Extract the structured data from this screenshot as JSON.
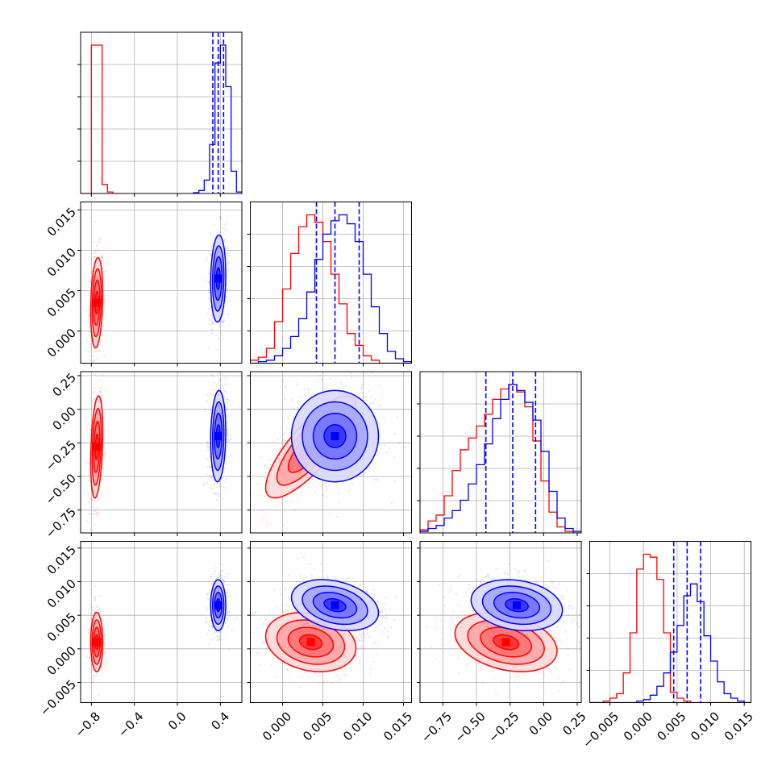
{
  "chart_data": {
    "type": "corner",
    "title": "",
    "colors": {
      "series_a": "#ff0000",
      "series_b": "#0000ff",
      "grid": "#b0b0b0",
      "axis": "#000000"
    },
    "grid": true,
    "params": [
      {
        "range": [
          -0.9,
          0.6
        ],
        "ticks": [
          -0.8,
          -0.4,
          0.0,
          0.4
        ],
        "tick_labels": [
          "−0.8",
          "−0.4",
          "0.0",
          "0.4"
        ]
      },
      {
        "range": [
          -0.004,
          0.016
        ],
        "ticks": [
          0.0,
          0.005,
          0.01,
          0.015
        ],
        "tick_labels": [
          "0.000",
          "0.005",
          "0.010",
          "0.015"
        ]
      },
      {
        "range": [
          -0.92,
          0.28
        ],
        "ticks": [
          -0.75,
          -0.5,
          -0.25,
          0.0,
          0.25
        ],
        "tick_labels": [
          "−0.75",
          "−0.50",
          "−0.25",
          "0.00",
          "0.25"
        ]
      },
      {
        "range": [
          -0.008,
          0.016
        ],
        "ticks": [
          -0.005,
          0.0,
          0.005,
          0.01,
          0.015
        ],
        "tick_labels": [
          "−0.005",
          "0.000",
          "0.005",
          "0.010",
          "0.015"
        ]
      }
    ],
    "series": [
      {
        "name": "",
        "color": "#ff0000",
        "mean": [
          -0.75,
          0.0035,
          -0.28,
          0.001
        ],
        "std": [
          0.028,
          0.0028,
          0.19,
          0.0022
        ],
        "histograms": [
          {
            "edges": [
              -0.9,
              -0.85,
              -0.8,
              -0.75,
              -0.7,
              -0.65,
              -0.6,
              -0.55
            ],
            "counts": [
              0,
              0,
              1.0,
              1.0,
              0.06,
              0.01,
              0,
              0
            ]
          },
          {
            "edges": [
              -0.004,
              -0.003,
              -0.002,
              -0.001,
              0.0,
              0.001,
              0.002,
              0.003,
              0.004,
              0.005,
              0.006,
              0.007,
              0.008,
              0.009,
              0.01,
              0.011,
              0.012,
              0.013,
              0.014,
              0.015,
              0.016
            ],
            "counts": [
              0.02,
              0.04,
              0.1,
              0.28,
              0.5,
              0.74,
              0.92,
              1.0,
              0.95,
              0.82,
              0.6,
              0.4,
              0.2,
              0.12,
              0.05,
              0.02,
              0,
              0,
              0,
              0
            ]
          },
          {
            "edges": [
              -0.92,
              -0.86,
              -0.8,
              -0.74,
              -0.68,
              -0.62,
              -0.56,
              -0.5,
              -0.44,
              -0.38,
              -0.32,
              -0.26,
              -0.2,
              -0.14,
              -0.08,
              -0.02,
              0.04,
              0.1,
              0.16,
              0.22,
              0.28
            ],
            "counts": [
              0.02,
              0.08,
              0.12,
              0.25,
              0.42,
              0.56,
              0.64,
              0.72,
              0.8,
              0.9,
              0.97,
              1.0,
              0.95,
              0.85,
              0.62,
              0.35,
              0.14,
              0.04,
              0.01,
              0
            ]
          },
          {
            "edges": [
              -0.008,
              -0.007,
              -0.006,
              -0.005,
              -0.004,
              -0.003,
              -0.002,
              -0.001,
              0.0,
              0.001,
              0.002,
              0.003,
              0.004,
              0.005,
              0.006,
              0.007,
              0.008,
              0.009,
              0.01,
              0.011,
              0.012,
              0.013,
              0.014,
              0.015,
              0.016
            ],
            "counts": [
              0,
              0,
              0.01,
              0.03,
              0.06,
              0.2,
              0.47,
              0.9,
              1.0,
              0.98,
              0.83,
              0.47,
              0.07,
              0.03,
              0.01,
              0,
              0,
              0,
              0,
              0,
              0,
              0,
              0,
              0
            ]
          }
        ]
      },
      {
        "name": "",
        "color": "#0000ff",
        "mean": [
          0.38,
          0.0065,
          -0.2,
          0.0065
        ],
        "std": [
          0.035,
          0.0027,
          0.17,
          0.0019
        ],
        "quantiles": [
          [
            0.33,
            0.38,
            0.43
          ],
          [
            0.0042,
            0.0065,
            0.0095
          ],
          [
            -0.43,
            -0.23,
            -0.06
          ],
          [
            0.0045,
            0.0065,
            0.0085
          ]
        ],
        "histograms": [
          {
            "edges": [
              0.15,
              0.2,
              0.25,
              0.3,
              0.35,
              0.4,
              0.45,
              0.5,
              0.55,
              0.6
            ],
            "counts": [
              0.005,
              0.02,
              0.09,
              0.33,
              0.88,
              1.0,
              0.72,
              0.15,
              0.01
            ]
          },
          {
            "edges": [
              -0.004,
              -0.003,
              -0.002,
              -0.001,
              0.0,
              0.001,
              0.002,
              0.003,
              0.004,
              0.005,
              0.006,
              0.007,
              0.008,
              0.009,
              0.01,
              0.011,
              0.012,
              0.013,
              0.014,
              0.015,
              0.016
            ],
            "counts": [
              0,
              0.01,
              0.02,
              0.05,
              0.1,
              0.18,
              0.3,
              0.48,
              0.7,
              0.87,
              0.96,
              1.0,
              0.94,
              0.82,
              0.6,
              0.38,
              0.2,
              0.08,
              0.03,
              0.01
            ]
          },
          {
            "edges": [
              -0.92,
              -0.86,
              -0.8,
              -0.74,
              -0.68,
              -0.62,
              -0.56,
              -0.5,
              -0.44,
              -0.38,
              -0.32,
              -0.26,
              -0.2,
              -0.14,
              -0.08,
              -0.02,
              0.04,
              0.1,
              0.16,
              0.22,
              0.28
            ],
            "counts": [
              0.01,
              0.03,
              0.05,
              0.1,
              0.15,
              0.22,
              0.33,
              0.46,
              0.6,
              0.77,
              0.9,
              1.0,
              0.96,
              0.88,
              0.76,
              0.55,
              0.28,
              0.1,
              0.03,
              0.01
            ]
          },
          {
            "edges": [
              -0.008,
              -0.007,
              -0.006,
              -0.005,
              -0.004,
              -0.003,
              -0.002,
              -0.001,
              0.0,
              0.001,
              0.002,
              0.003,
              0.004,
              0.005,
              0.006,
              0.007,
              0.008,
              0.009,
              0.01,
              0.011,
              0.012,
              0.013,
              0.014,
              0.015,
              0.016
            ],
            "counts": [
              0,
              0,
              0,
              0,
              0,
              0,
              0,
              0.01,
              0.02,
              0.05,
              0.11,
              0.2,
              0.34,
              0.52,
              0.72,
              0.8,
              0.68,
              0.45,
              0.28,
              0.14,
              0.06,
              0.03,
              0.01,
              0
            ]
          }
        ]
      }
    ],
    "pairs": [
      {
        "row": 1,
        "col": 0,
        "rho": [
          0.2,
          0.1
        ]
      },
      {
        "row": 2,
        "col": 0,
        "rho": [
          0.3,
          0.1
        ]
      },
      {
        "row": 2,
        "col": 1,
        "rho": [
          0.8,
          0.0
        ]
      },
      {
        "row": 3,
        "col": 0,
        "rho": [
          0.0,
          0.0
        ]
      },
      {
        "row": 3,
        "col": 1,
        "rho": [
          -0.2,
          -0.3
        ]
      },
      {
        "row": 3,
        "col": 2,
        "rho": [
          -0.3,
          -0.2
        ]
      }
    ]
  }
}
